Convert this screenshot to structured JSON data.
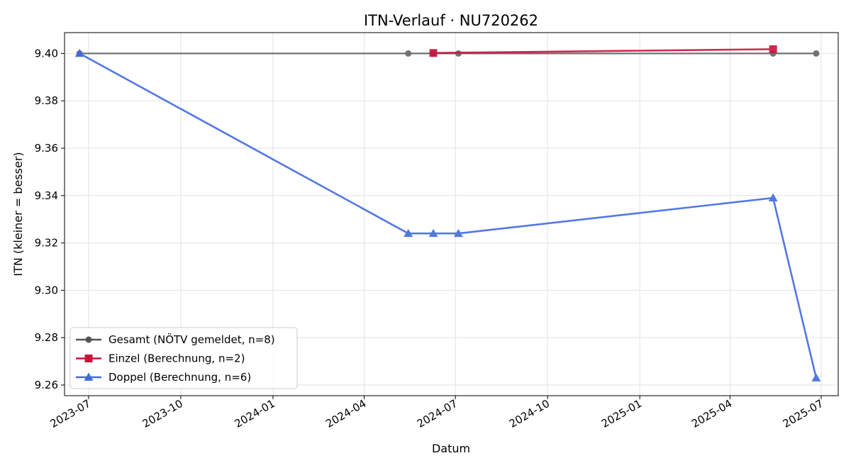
{
  "chart_data": {
    "type": "line",
    "title": "ITN-Verlauf · NU720262",
    "xlabel": "Datum",
    "ylabel": "ITN  (kleiner = besser)",
    "xlim": [
      "2023-06-07",
      "2025-07-18"
    ],
    "ylim": [
      9.2555,
      9.4088
    ],
    "x_ticks": [
      "2023-07",
      "2023-10",
      "2024-01",
      "2024-04",
      "2024-07",
      "2024-10",
      "2025-01",
      "2025-04",
      "2025-07"
    ],
    "y_ticks": [
      "9.26",
      "9.28",
      "9.30",
      "9.32",
      "9.34",
      "9.36",
      "9.38",
      "9.40"
    ],
    "grid": true,
    "legend_position": "lower-left",
    "series": [
      {
        "name": "Gesamt (NÖTV gemeldet, n=8)",
        "color": "#555555",
        "marker": "circle",
        "points": [
          {
            "x": "2023-06-22",
            "y": 9.4
          },
          {
            "x": "2024-05-15",
            "y": 9.4
          },
          {
            "x": "2024-06-09",
            "y": 9.4
          },
          {
            "x": "2024-07-04",
            "y": 9.4
          },
          {
            "x": "2025-05-14",
            "y": 9.4
          },
          {
            "x": "2025-06-26",
            "y": 9.4
          }
        ]
      },
      {
        "name": "Einzel (Berechnung, n=2)",
        "color": "#c8143c",
        "marker": "square",
        "points": [
          {
            "x": "2024-06-09",
            "y": 9.4002
          },
          {
            "x": "2025-05-14",
            "y": 9.4018
          }
        ]
      },
      {
        "name": "Doppel (Berechnung, n=6)",
        "color": "#4169e1",
        "marker": "triangle",
        "points": [
          {
            "x": "2023-06-22",
            "y": 9.4
          },
          {
            "x": "2024-05-15",
            "y": 9.324
          },
          {
            "x": "2024-06-09",
            "y": 9.324
          },
          {
            "x": "2024-07-04",
            "y": 9.324
          },
          {
            "x": "2025-05-14",
            "y": 9.339
          },
          {
            "x": "2025-06-26",
            "y": 9.263
          }
        ]
      }
    ]
  }
}
